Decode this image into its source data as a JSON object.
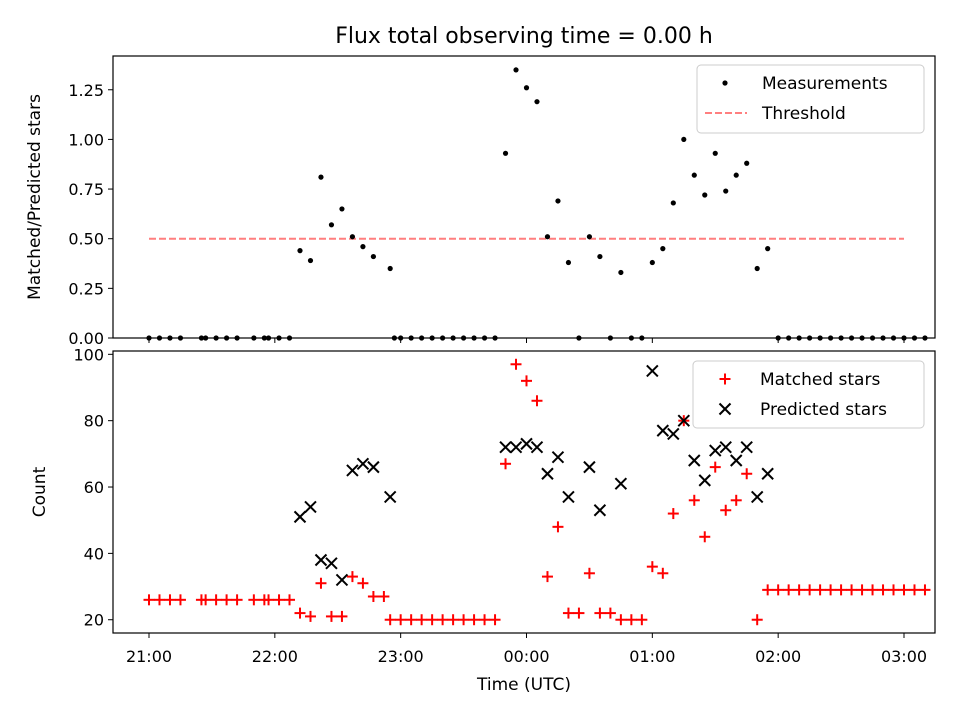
{
  "chart_data": [
    {
      "type": "scatter",
      "title": "Flux total observing time = 0.00 h",
      "xlabel": "",
      "ylabel": "Matched/Predicted stars",
      "ylim": [
        0,
        1.42
      ],
      "yticks": [
        "0.00",
        "0.25",
        "0.50",
        "0.75",
        "1.00",
        "1.25"
      ],
      "grid": false,
      "legend": "top-right",
      "series": [
        {
          "name": "Measurements",
          "marker": "dot",
          "color": "#000000",
          "points": [
            [
              "21:00",
              0
            ],
            [
              "21:05",
              0
            ],
            [
              "21:10",
              0
            ],
            [
              "21:15",
              0
            ],
            [
              "21:25",
              0
            ],
            [
              "21:27",
              0
            ],
            [
              "21:32",
              0
            ],
            [
              "21:37",
              0
            ],
            [
              "21:42",
              0
            ],
            [
              "21:50",
              0
            ],
            [
              "21:55",
              0
            ],
            [
              "21:57",
              0
            ],
            [
              "22:02",
              0
            ],
            [
              "22:07",
              0
            ],
            [
              "22:12",
              0.44
            ],
            [
              "22:17",
              0.39
            ],
            [
              "22:22",
              0.81
            ],
            [
              "22:27",
              0.57
            ],
            [
              "22:32",
              0.65
            ],
            [
              "22:37",
              0.51
            ],
            [
              "22:42",
              0.46
            ],
            [
              "22:47",
              0.41
            ],
            [
              "22:55",
              0.35
            ],
            [
              "22:57",
              0
            ],
            [
              "23:00",
              0
            ],
            [
              "23:05",
              0
            ],
            [
              "23:10",
              0
            ],
            [
              "23:15",
              0
            ],
            [
              "23:20",
              0
            ],
            [
              "23:25",
              0
            ],
            [
              "23:30",
              0
            ],
            [
              "23:35",
              0
            ],
            [
              "23:40",
              0
            ],
            [
              "23:45",
              0
            ],
            [
              "23:50",
              0.93
            ],
            [
              "23:55",
              1.35
            ],
            [
              "00:00",
              1.26
            ],
            [
              "00:05",
              1.19
            ],
            [
              "00:10",
              0.51
            ],
            [
              "00:15",
              0.69
            ],
            [
              "00:20",
              0.38
            ],
            [
              "00:25",
              0
            ],
            [
              "00:30",
              0.51
            ],
            [
              "00:35",
              0.41
            ],
            [
              "00:40",
              0
            ],
            [
              "00:45",
              0.33
            ],
            [
              "00:50",
              0
            ],
            [
              "00:55",
              0
            ],
            [
              "01:00",
              0.38
            ],
            [
              "01:05",
              0.45
            ],
            [
              "01:10",
              0.68
            ],
            [
              "01:15",
              1.0
            ],
            [
              "01:20",
              0.82
            ],
            [
              "01:25",
              0.72
            ],
            [
              "01:30",
              0.93
            ],
            [
              "01:35",
              0.74
            ],
            [
              "01:40",
              0.82
            ],
            [
              "01:45",
              0.88
            ],
            [
              "01:50",
              0.35
            ],
            [
              "01:55",
              0.45
            ],
            [
              "02:00",
              0
            ],
            [
              "02:05",
              0
            ],
            [
              "02:10",
              0
            ],
            [
              "02:15",
              0
            ],
            [
              "02:20",
              0
            ],
            [
              "02:25",
              0
            ],
            [
              "02:30",
              0
            ],
            [
              "02:35",
              0
            ],
            [
              "02:40",
              0
            ],
            [
              "02:45",
              0
            ],
            [
              "02:50",
              0
            ],
            [
              "02:55",
              0
            ],
            [
              "03:00",
              0
            ],
            [
              "03:05",
              0
            ],
            [
              "03:10",
              0
            ]
          ]
        },
        {
          "name": "Threshold",
          "marker": "dashed-line",
          "color": "#ff7f7f",
          "points": [
            [
              "21:00",
              0.5
            ],
            [
              "03:00",
              0.5
            ]
          ]
        }
      ]
    },
    {
      "type": "scatter",
      "title": "",
      "xlabel": "Time (UTC)",
      "ylabel": "Count",
      "ylim": [
        16,
        101
      ],
      "yticks": [
        "20",
        "40",
        "60",
        "80",
        "100"
      ],
      "xticks": [
        "21:00",
        "22:00",
        "23:00",
        "00:00",
        "01:00",
        "02:00",
        "03:00"
      ],
      "grid": false,
      "legend": "top-right",
      "series": [
        {
          "name": "Matched stars",
          "marker": "plus",
          "color": "#ff0000",
          "points": [
            [
              "21:00",
              26
            ],
            [
              "21:05",
              26
            ],
            [
              "21:10",
              26
            ],
            [
              "21:15",
              26
            ],
            [
              "21:25",
              26
            ],
            [
              "21:27",
              26
            ],
            [
              "21:32",
              26
            ],
            [
              "21:37",
              26
            ],
            [
              "21:42",
              26
            ],
            [
              "21:50",
              26
            ],
            [
              "21:55",
              26
            ],
            [
              "21:57",
              26
            ],
            [
              "22:02",
              26
            ],
            [
              "22:07",
              26
            ],
            [
              "22:12",
              22
            ],
            [
              "22:17",
              21
            ],
            [
              "22:22",
              31
            ],
            [
              "22:27",
              21
            ],
            [
              "22:32",
              21
            ],
            [
              "22:37",
              33
            ],
            [
              "22:42",
              31
            ],
            [
              "22:47",
              27
            ],
            [
              "22:52",
              27
            ],
            [
              "22:55",
              20
            ],
            [
              "23:00",
              20
            ],
            [
              "23:05",
              20
            ],
            [
              "23:10",
              20
            ],
            [
              "23:15",
              20
            ],
            [
              "23:20",
              20
            ],
            [
              "23:25",
              20
            ],
            [
              "23:30",
              20
            ],
            [
              "23:35",
              20
            ],
            [
              "23:40",
              20
            ],
            [
              "23:45",
              20
            ],
            [
              "23:50",
              67
            ],
            [
              "23:55",
              97
            ],
            [
              "00:00",
              92
            ],
            [
              "00:05",
              86
            ],
            [
              "00:10",
              33
            ],
            [
              "00:15",
              48
            ],
            [
              "00:20",
              22
            ],
            [
              "00:25",
              22
            ],
            [
              "00:30",
              34
            ],
            [
              "00:35",
              22
            ],
            [
              "00:40",
              22
            ],
            [
              "00:45",
              20
            ],
            [
              "00:50",
              20
            ],
            [
              "00:55",
              20
            ],
            [
              "01:00",
              36
            ],
            [
              "01:05",
              34
            ],
            [
              "01:10",
              52
            ],
            [
              "01:15",
              80
            ],
            [
              "01:20",
              56
            ],
            [
              "01:25",
              45
            ],
            [
              "01:30",
              66
            ],
            [
              "01:35",
              53
            ],
            [
              "01:40",
              56
            ],
            [
              "01:45",
              64
            ],
            [
              "01:50",
              20
            ],
            [
              "01:55",
              29
            ],
            [
              "02:00",
              29
            ],
            [
              "02:05",
              29
            ],
            [
              "02:10",
              29
            ],
            [
              "02:15",
              29
            ],
            [
              "02:20",
              29
            ],
            [
              "02:25",
              29
            ],
            [
              "02:30",
              29
            ],
            [
              "02:35",
              29
            ],
            [
              "02:40",
              29
            ],
            [
              "02:45",
              29
            ],
            [
              "02:50",
              29
            ],
            [
              "02:55",
              29
            ],
            [
              "03:00",
              29
            ],
            [
              "03:05",
              29
            ],
            [
              "03:10",
              29
            ]
          ]
        },
        {
          "name": "Predicted stars",
          "marker": "x",
          "color": "#000000",
          "points": [
            [
              "22:12",
              51
            ],
            [
              "22:17",
              54
            ],
            [
              "22:22",
              38
            ],
            [
              "22:27",
              37
            ],
            [
              "22:32",
              32
            ],
            [
              "22:37",
              65
            ],
            [
              "22:42",
              67
            ],
            [
              "22:47",
              66
            ],
            [
              "22:55",
              57
            ],
            [
              "23:50",
              72
            ],
            [
              "23:55",
              72
            ],
            [
              "00:00",
              73
            ],
            [
              "00:05",
              72
            ],
            [
              "00:10",
              64
            ],
            [
              "00:15",
              69
            ],
            [
              "00:20",
              57
            ],
            [
              "00:30",
              66
            ],
            [
              "00:35",
              53
            ],
            [
              "00:45",
              61
            ],
            [
              "01:00",
              95
            ],
            [
              "01:05",
              77
            ],
            [
              "01:10",
              76
            ],
            [
              "01:15",
              80
            ],
            [
              "01:20",
              68
            ],
            [
              "01:25",
              62
            ],
            [
              "01:30",
              71
            ],
            [
              "01:35",
              72
            ],
            [
              "01:40",
              68
            ],
            [
              "01:45",
              72
            ],
            [
              "01:50",
              57
            ],
            [
              "01:55",
              64
            ]
          ]
        }
      ]
    }
  ]
}
